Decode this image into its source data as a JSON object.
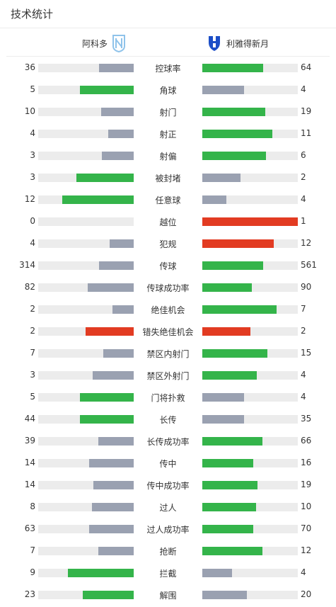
{
  "header": {
    "title": "技术统计"
  },
  "teams": {
    "home": "阿科多",
    "away": "利雅得新月"
  },
  "colors": {
    "win": "#34b44a",
    "lose": "#9aa1b1",
    "red": "#e23b22",
    "track": "#ececec"
  },
  "stats": [
    {
      "label": "控球率",
      "home": "36",
      "away": "64",
      "home_pct": 36,
      "away_pct": 64,
      "home_color": "lose",
      "away_color": "win"
    },
    {
      "label": "角球",
      "home": "5",
      "away": "4",
      "home_pct": 56,
      "away_pct": 44,
      "home_color": "win",
      "away_color": "lose"
    },
    {
      "label": "射门",
      "home": "10",
      "away": "19",
      "home_pct": 34,
      "away_pct": 66,
      "home_color": "lose",
      "away_color": "win"
    },
    {
      "label": "射正",
      "home": "4",
      "away": "11",
      "home_pct": 27,
      "away_pct": 73,
      "home_color": "lose",
      "away_color": "win"
    },
    {
      "label": "射偏",
      "home": "3",
      "away": "6",
      "home_pct": 33,
      "away_pct": 67,
      "home_color": "lose",
      "away_color": "win"
    },
    {
      "label": "被封堵",
      "home": "3",
      "away": "2",
      "home_pct": 60,
      "away_pct": 40,
      "home_color": "win",
      "away_color": "lose"
    },
    {
      "label": "任意球",
      "home": "12",
      "away": "4",
      "home_pct": 75,
      "away_pct": 25,
      "home_color": "win",
      "away_color": "lose"
    },
    {
      "label": "越位",
      "home": "0",
      "away": "1",
      "home_pct": 0,
      "away_pct": 100,
      "home_color": "lose",
      "away_color": "red"
    },
    {
      "label": "犯规",
      "home": "4",
      "away": "12",
      "home_pct": 25,
      "away_pct": 75,
      "home_color": "lose",
      "away_color": "red"
    },
    {
      "label": "传球",
      "home": "314",
      "away": "561",
      "home_pct": 36,
      "away_pct": 64,
      "home_color": "lose",
      "away_color": "win"
    },
    {
      "label": "传球成功率",
      "home": "82",
      "away": "90",
      "home_pct": 48,
      "away_pct": 52,
      "home_color": "lose",
      "away_color": "win"
    },
    {
      "label": "绝佳机会",
      "home": "2",
      "away": "7",
      "home_pct": 22,
      "away_pct": 78,
      "home_color": "lose",
      "away_color": "win"
    },
    {
      "label": "错失绝佳机会",
      "home": "2",
      "away": "2",
      "home_pct": 50,
      "away_pct": 50,
      "home_color": "red",
      "away_color": "red"
    },
    {
      "label": "禁区内射门",
      "home": "7",
      "away": "15",
      "home_pct": 32,
      "away_pct": 68,
      "home_color": "lose",
      "away_color": "win"
    },
    {
      "label": "禁区外射门",
      "home": "3",
      "away": "4",
      "home_pct": 43,
      "away_pct": 57,
      "home_color": "lose",
      "away_color": "win"
    },
    {
      "label": "门将扑救",
      "home": "5",
      "away": "4",
      "home_pct": 56,
      "away_pct": 44,
      "home_color": "win",
      "away_color": "lose"
    },
    {
      "label": "长传",
      "home": "44",
      "away": "35",
      "home_pct": 56,
      "away_pct": 44,
      "home_color": "win",
      "away_color": "lose"
    },
    {
      "label": "长传成功率",
      "home": "39",
      "away": "66",
      "home_pct": 37,
      "away_pct": 63,
      "home_color": "lose",
      "away_color": "win"
    },
    {
      "label": "传中",
      "home": "14",
      "away": "16",
      "home_pct": 47,
      "away_pct": 53,
      "home_color": "lose",
      "away_color": "win"
    },
    {
      "label": "传中成功率",
      "home": "14",
      "away": "19",
      "home_pct": 42,
      "away_pct": 58,
      "home_color": "lose",
      "away_color": "win"
    },
    {
      "label": "过人",
      "home": "8",
      "away": "10",
      "home_pct": 44,
      "away_pct": 56,
      "home_color": "lose",
      "away_color": "win"
    },
    {
      "label": "过人成功率",
      "home": "63",
      "away": "70",
      "home_pct": 47,
      "away_pct": 53,
      "home_color": "lose",
      "away_color": "win"
    },
    {
      "label": "抢断",
      "home": "7",
      "away": "12",
      "home_pct": 37,
      "away_pct": 63,
      "home_color": "lose",
      "away_color": "win"
    },
    {
      "label": "拦截",
      "home": "9",
      "away": "4",
      "home_pct": 69,
      "away_pct": 31,
      "home_color": "win",
      "away_color": "lose"
    },
    {
      "label": "解围",
      "home": "23",
      "away": "20",
      "home_pct": 53,
      "away_pct": 47,
      "home_color": "win",
      "away_color": "lose"
    }
  ]
}
